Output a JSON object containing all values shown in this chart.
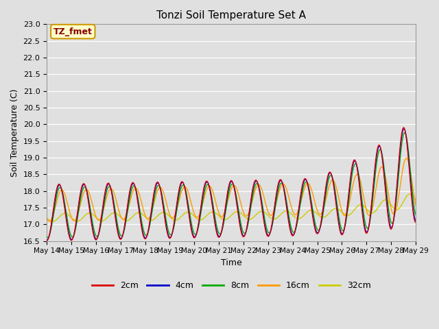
{
  "title": "Tonzi Soil Temperature Set A",
  "xlabel": "Time",
  "ylabel": "Soil Temperature (C)",
  "ylim": [
    16.5,
    23.0
  ],
  "yticks": [
    16.5,
    17.0,
    17.5,
    18.0,
    18.5,
    19.0,
    19.5,
    20.0,
    20.5,
    21.0,
    21.5,
    22.0,
    22.5,
    23.0
  ],
  "xtick_labels": [
    "May 14",
    "May 15",
    "May 16",
    "May 17",
    "May 18",
    "May 19",
    "May 20",
    "May 21",
    "May 22",
    "May 23",
    "May 24",
    "May 25",
    "May 26",
    "May 27",
    "May 28",
    "May 29"
  ],
  "legend_label": "TZ_fmet",
  "legend_box_color": "#ffffcc",
  "legend_box_edge": "#cc9900",
  "series_colors": [
    "#dd0000",
    "#0000cc",
    "#00aa00",
    "#ff9900",
    "#cccc00"
  ],
  "series_labels": [
    "2cm",
    "4cm",
    "8cm",
    "16cm",
    "32cm"
  ],
  "background_color": "#e0e0e0",
  "plot_bg_color": "#e0e0e0",
  "grid_color": "#ffffff",
  "n_points": 480
}
